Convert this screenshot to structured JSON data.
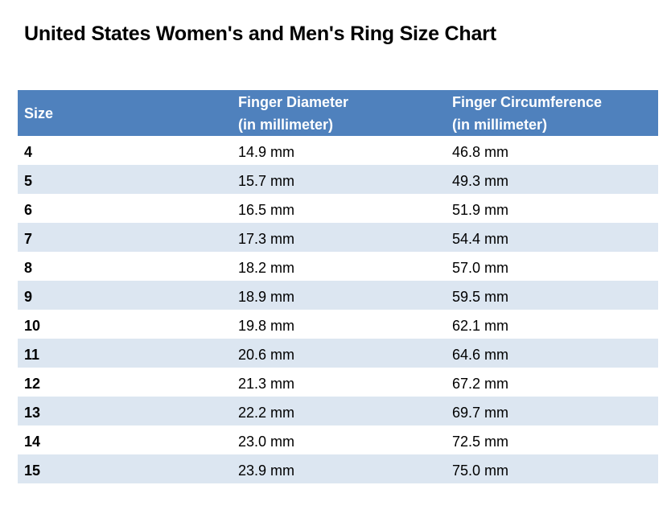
{
  "title": "United States Women's and Men's Ring Size Chart",
  "colors": {
    "header_bg": "#4f81bd",
    "header_text": "#ffffff",
    "alt_row_bg": "#dce6f1"
  },
  "table": {
    "headers": [
      "Size",
      "Finger Diameter\n(in millimeter)",
      "Finger Circumference\n(in millimeter)"
    ],
    "header_lines": [
      [
        "Size"
      ],
      [
        "Finger Diameter",
        "(in millimeter)"
      ],
      [
        "Finger Circumference",
        "(in millimeter)"
      ]
    ],
    "rows": [
      [
        "4",
        "14.9 mm",
        "46.8 mm"
      ],
      [
        "5",
        "15.7 mm",
        "49.3 mm"
      ],
      [
        "6",
        "16.5 mm",
        "51.9 mm"
      ],
      [
        "7",
        "17.3 mm",
        "54.4 mm"
      ],
      [
        "8",
        "18.2 mm",
        "57.0 mm"
      ],
      [
        "9",
        "18.9 mm",
        "59.5 mm"
      ],
      [
        "10",
        "19.8 mm",
        "62.1 mm"
      ],
      [
        "11",
        "20.6 mm",
        "64.6 mm"
      ],
      [
        "12",
        "21.3 mm",
        "67.2 mm"
      ],
      [
        "13",
        "22.2 mm",
        "69.7 mm"
      ],
      [
        "14",
        "23.0 mm",
        "72.5 mm"
      ],
      [
        "15",
        "23.9 mm",
        "75.0 mm"
      ]
    ]
  }
}
